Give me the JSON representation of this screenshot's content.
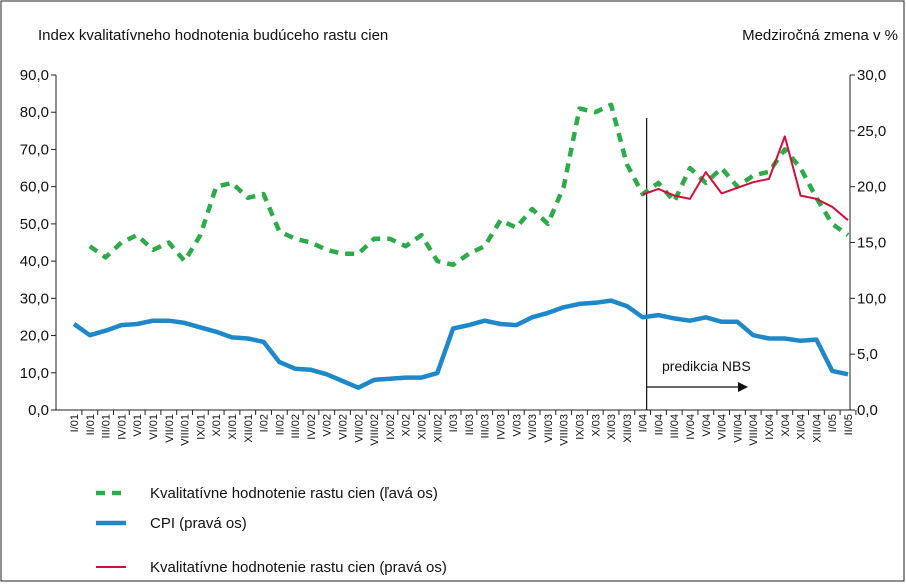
{
  "chart_data": {
    "type": "line",
    "y_label": "Index kvalitatívneho hodnotenia budúceho rastu cien",
    "y2_label": "Medziročná zmena v %",
    "annotation": "predikcia NBS",
    "categories": [
      "I/01",
      "II/01",
      "III/01",
      "IV/01",
      "V/01",
      "VI/01",
      "VII/01",
      "VIII/01",
      "IX/01",
      "X/01",
      "XI/01",
      "XII/01",
      "I/02",
      "II/02",
      "III/02",
      "IV/02",
      "V/02",
      "VI/02",
      "VII/02",
      "VIII/02",
      "IX/02",
      "X/02",
      "XI/02",
      "XII/02",
      "I/03",
      "II/03",
      "III/03",
      "IV/03",
      "V/03",
      "VI/03",
      "VII/03",
      "VIII/03",
      "IX/03",
      "X/03",
      "XI/03",
      "XII/03",
      "I/04",
      "II/04",
      "III/04",
      "IV/04",
      "V/04",
      "VI/04",
      "VII/04",
      "VIII/04",
      "IX/04",
      "X/04",
      "XI/04",
      "XII/04",
      "I/05",
      "II/05"
    ],
    "series": [
      {
        "name": "Kvalitatívne hodnotenie rastu cien (ľavá os)",
        "color": "#2eaa4a",
        "style": "dashed",
        "axis": "y",
        "values": [
          null,
          44,
          41,
          45,
          47,
          43,
          45,
          40,
          47,
          60,
          61,
          57,
          58,
          48,
          46,
          45,
          43,
          42,
          42,
          46,
          46,
          44,
          47,
          40,
          39,
          42,
          44,
          51,
          49,
          54,
          50,
          60,
          81,
          80,
          82,
          66,
          58,
          61,
          56,
          65,
          61,
          65,
          60,
          63,
          64,
          70,
          65,
          57,
          50,
          47
        ]
      },
      {
        "name": "CPI (pravá os)",
        "color": "#1e88c8",
        "style": "solid",
        "axis": "y2",
        "values": [
          7.7,
          6.7,
          7.1,
          7.6,
          7.7,
          8.0,
          8.0,
          7.8,
          7.4,
          7.0,
          6.5,
          6.4,
          6.1,
          4.3,
          3.7,
          3.6,
          3.2,
          2.6,
          2.0,
          2.7,
          2.8,
          2.9,
          2.9,
          3.3,
          7.3,
          7.6,
          8.0,
          7.7,
          7.6,
          8.3,
          8.7,
          9.2,
          9.5,
          9.6,
          9.8,
          9.3,
          8.3,
          8.5,
          8.2,
          8.0,
          8.3,
          7.9,
          7.9,
          6.7,
          6.4,
          6.4,
          6.2,
          6.3,
          3.5,
          3.2
        ]
      },
      {
        "name": "Kvalitatívne hodnotenie rastu cien (pravá os)",
        "color": "#d0103a",
        "style": "thin",
        "axis": "y2",
        "values": [
          null,
          null,
          null,
          null,
          null,
          null,
          null,
          null,
          null,
          null,
          null,
          null,
          null,
          null,
          null,
          null,
          null,
          null,
          null,
          null,
          null,
          null,
          null,
          null,
          null,
          null,
          null,
          null,
          null,
          null,
          null,
          null,
          null,
          null,
          null,
          null,
          19.3,
          19.8,
          19.2,
          18.9,
          21.3,
          19.4,
          19.9,
          20.4,
          20.7,
          24.5,
          19.2,
          18.9,
          18.2,
          17.0
        ]
      }
    ],
    "ylim": [
      0,
      90
    ],
    "yticks": [
      {
        "value": 0,
        "label": "0,0"
      },
      {
        "value": 10,
        "label": "10,0"
      },
      {
        "value": 20,
        "label": "20,0"
      },
      {
        "value": 30,
        "label": "30,0"
      },
      {
        "value": 40,
        "label": "40,0"
      },
      {
        "value": 50,
        "label": "50,0"
      },
      {
        "value": 60,
        "label": "60,0"
      },
      {
        "value": 70,
        "label": "70,0"
      },
      {
        "value": 80,
        "label": "80,0"
      },
      {
        "value": 90,
        "label": "90,0"
      }
    ],
    "y2lim": [
      0,
      30
    ],
    "y2ticks": [
      {
        "value": 0,
        "label": "0,0"
      },
      {
        "value": 5,
        "label": "5,0"
      },
      {
        "value": 10,
        "label": "10,0"
      },
      {
        "value": 15,
        "label": "15,0"
      },
      {
        "value": 20,
        "label": "20,0"
      },
      {
        "value": 25,
        "label": "25,0"
      },
      {
        "value": 30,
        "label": "30,0"
      }
    ],
    "grid": false
  }
}
